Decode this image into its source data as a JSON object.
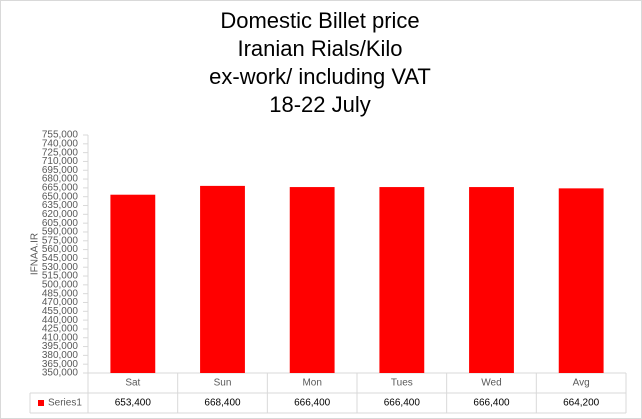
{
  "chart_data": {
    "type": "bar",
    "title": [
      "Domestic Billet price",
      "Iranian Rials/Kilo",
      "ex-work/ including VAT",
      "18-22 July"
    ],
    "y_label": "IFNAA.IR",
    "categories": [
      "Sat",
      "Sun",
      "Mon",
      "Tues",
      "Wed",
      "Avg"
    ],
    "series": [
      {
        "name": "Series1",
        "color": "#ff0000",
        "values": [
          653400,
          668400,
          666400,
          666400,
          666400,
          664200
        ],
        "value_labels": [
          "653,400",
          "668,400",
          "666,400",
          "666,400",
          "666,400",
          "664,200"
        ]
      }
    ],
    "ylim": [
      350000,
      755000
    ],
    "yticks": [
      {
        "value": 350000,
        "label": "350,000"
      },
      {
        "value": 365000,
        "label": "365,000"
      },
      {
        "value": 380000,
        "label": "380,000"
      },
      {
        "value": 395000,
        "label": "395,000"
      },
      {
        "value": 410000,
        "label": "410,000"
      },
      {
        "value": 425000,
        "label": "425,000"
      },
      {
        "value": 440000,
        "label": "440,000"
      },
      {
        "value": 455000,
        "label": "455,000"
      },
      {
        "value": 470000,
        "label": "470,000"
      },
      {
        "value": 485000,
        "label": "485,000"
      },
      {
        "value": 500000,
        "label": "500,000"
      },
      {
        "value": 515000,
        "label": "515,000"
      },
      {
        "value": 530000,
        "label": "530,000"
      },
      {
        "value": 545000,
        "label": "545,000"
      },
      {
        "value": 560000,
        "label": "560,000"
      },
      {
        "value": 575000,
        "label": "575,000"
      },
      {
        "value": 590000,
        "label": "590,000"
      },
      {
        "value": 605000,
        "label": "605,000"
      },
      {
        "value": 620000,
        "label": "620,000"
      },
      {
        "value": 635000,
        "label": "635,000"
      },
      {
        "value": 650000,
        "label": "650,000"
      },
      {
        "value": 665000,
        "label": "665,000"
      },
      {
        "value": 680000,
        "label": "680,000"
      },
      {
        "value": 695000,
        "label": "695,000"
      },
      {
        "value": 710000,
        "label": "710,000"
      },
      {
        "value": 725000,
        "label": "725,000"
      },
      {
        "value": 740000,
        "label": "740,000"
      },
      {
        "value": 755000,
        "label": "755,000"
      }
    ],
    "grid": false
  }
}
